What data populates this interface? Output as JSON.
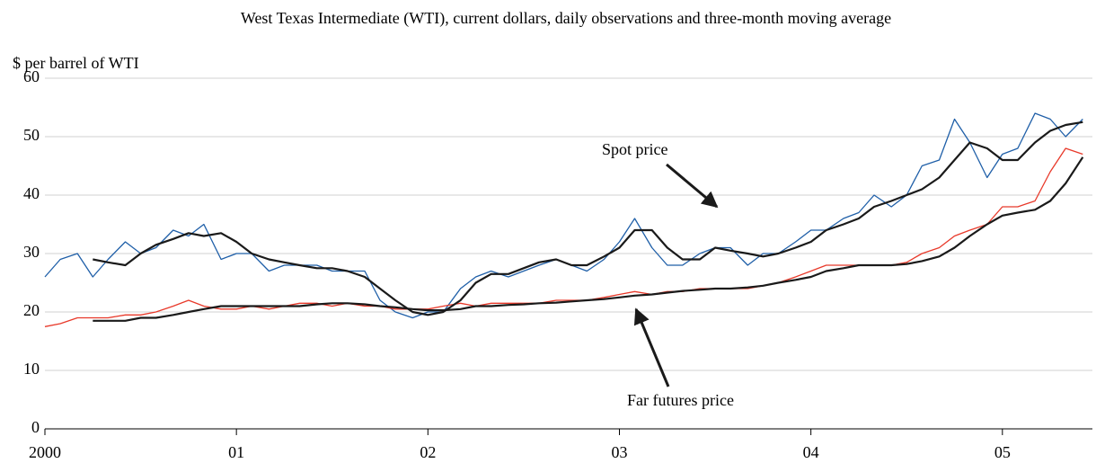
{
  "chart_data": {
    "type": "line",
    "title": "West Texas Intermediate (WTI), current dollars, daily observations and three-month moving average",
    "y_label": "$ per barrel of WTI",
    "annotations": [
      "Spot price",
      "Far futures price"
    ],
    "x": [
      2000,
      2000.08,
      2000.17,
      2000.25,
      2000.33,
      2000.42,
      2000.5,
      2000.58,
      2000.67,
      2000.75,
      2000.83,
      2000.92,
      2001,
      2001.08,
      2001.17,
      2001.25,
      2001.33,
      2001.42,
      2001.5,
      2001.58,
      2001.67,
      2001.75,
      2001.83,
      2001.92,
      2002,
      2002.08,
      2002.17,
      2002.25,
      2002.33,
      2002.42,
      2002.5,
      2002.58,
      2002.67,
      2002.75,
      2002.83,
      2002.92,
      2003,
      2003.08,
      2003.17,
      2003.25,
      2003.33,
      2003.42,
      2003.5,
      2003.58,
      2003.67,
      2003.75,
      2003.83,
      2003.92,
      2004,
      2004.08,
      2004.17,
      2004.25,
      2004.33,
      2004.42,
      2004.5,
      2004.58,
      2004.67,
      2004.75,
      2004.83,
      2004.92,
      2005,
      2005.08,
      2005.17,
      2005.25,
      2005.33,
      2005.42
    ],
    "series": [
      {
        "color": "#1f5fa8",
        "values": [
          26,
          29,
          30,
          26,
          29,
          32,
          30,
          31,
          34,
          33,
          35,
          29,
          30,
          30,
          27,
          28,
          28,
          28,
          27,
          27,
          27,
          22,
          20,
          19,
          20,
          20,
          24,
          26,
          27,
          26,
          27,
          28,
          29,
          28,
          27,
          29,
          32,
          36,
          31,
          28,
          28,
          30,
          31,
          31,
          28,
          30,
          30,
          32,
          34,
          34,
          36,
          37,
          40,
          38,
          40,
          45,
          46,
          53,
          49,
          43,
          47,
          48,
          54,
          53,
          50,
          53
        ]
      },
      {
        "color": "#e8392a",
        "values": [
          17.5,
          18,
          19,
          19,
          19,
          19.5,
          19.5,
          20,
          21,
          22,
          21,
          20.5,
          20.5,
          21,
          20.5,
          21,
          21.5,
          21.5,
          21,
          21.5,
          21,
          21,
          20.5,
          20.5,
          20.5,
          21,
          21.5,
          21,
          21.5,
          21.5,
          21.5,
          21.5,
          22,
          22,
          22,
          22.5,
          23,
          23.5,
          23,
          23.5,
          23.5,
          24,
          24,
          24,
          24,
          24.5,
          25,
          26,
          27,
          28,
          28,
          28,
          28,
          28,
          28.5,
          30,
          31,
          33,
          34,
          35,
          38,
          38,
          39,
          44,
          48,
          47
        ]
      },
      {
        "color": "#1a1a1a",
        "values": [
          null,
          null,
          null,
          29,
          28.5,
          28,
          30,
          31.5,
          32.5,
          33.5,
          33,
          33.5,
          32,
          30,
          29,
          28.5,
          28,
          27.5,
          27.5,
          27,
          26,
          24,
          22,
          20,
          19.5,
          20,
          22,
          25,
          26.5,
          26.5,
          27.5,
          28.5,
          29,
          28,
          28,
          29.5,
          31,
          34,
          34,
          31,
          29,
          29,
          31,
          30.5,
          30,
          29.5,
          30,
          31,
          32,
          34,
          35,
          36,
          38,
          39,
          40,
          41,
          43,
          46,
          49,
          48,
          46,
          46,
          49,
          51,
          52,
          52.5
        ]
      },
      {
        "color": "#1a1a1a",
        "values": [
          null,
          null,
          null,
          18.5,
          18.5,
          18.5,
          19,
          19,
          19.5,
          20,
          20.5,
          21,
          21,
          21,
          21,
          21,
          21,
          21.3,
          21.5,
          21.5,
          21.3,
          21,
          20.8,
          20.5,
          20.3,
          20.3,
          20.5,
          21,
          21,
          21.2,
          21.3,
          21.5,
          21.6,
          21.8,
          22,
          22.2,
          22.5,
          22.8,
          23,
          23.3,
          23.6,
          23.8,
          24,
          24,
          24.2,
          24.5,
          25,
          25.5,
          26,
          27,
          27.5,
          28,
          28,
          28,
          28.2,
          28.7,
          29.5,
          31,
          33,
          35,
          36.5,
          37,
          37.5,
          39,
          42,
          46.5
        ]
      }
    ],
    "xlim": [
      2000,
      2005.47
    ],
    "xticks": [
      2000,
      {
        "value": 2001,
        "label": "01"
      },
      {
        "value": 2002,
        "label": "02"
      },
      {
        "value": 2003,
        "label": "03"
      },
      {
        "value": 2004,
        "label": "04"
      },
      {
        "value": 2005,
        "label": "05"
      }
    ],
    "ylim": [
      0,
      60
    ],
    "yticks": [
      0,
      10,
      20,
      30,
      40,
      50,
      60
    ],
    "grid": true
  }
}
